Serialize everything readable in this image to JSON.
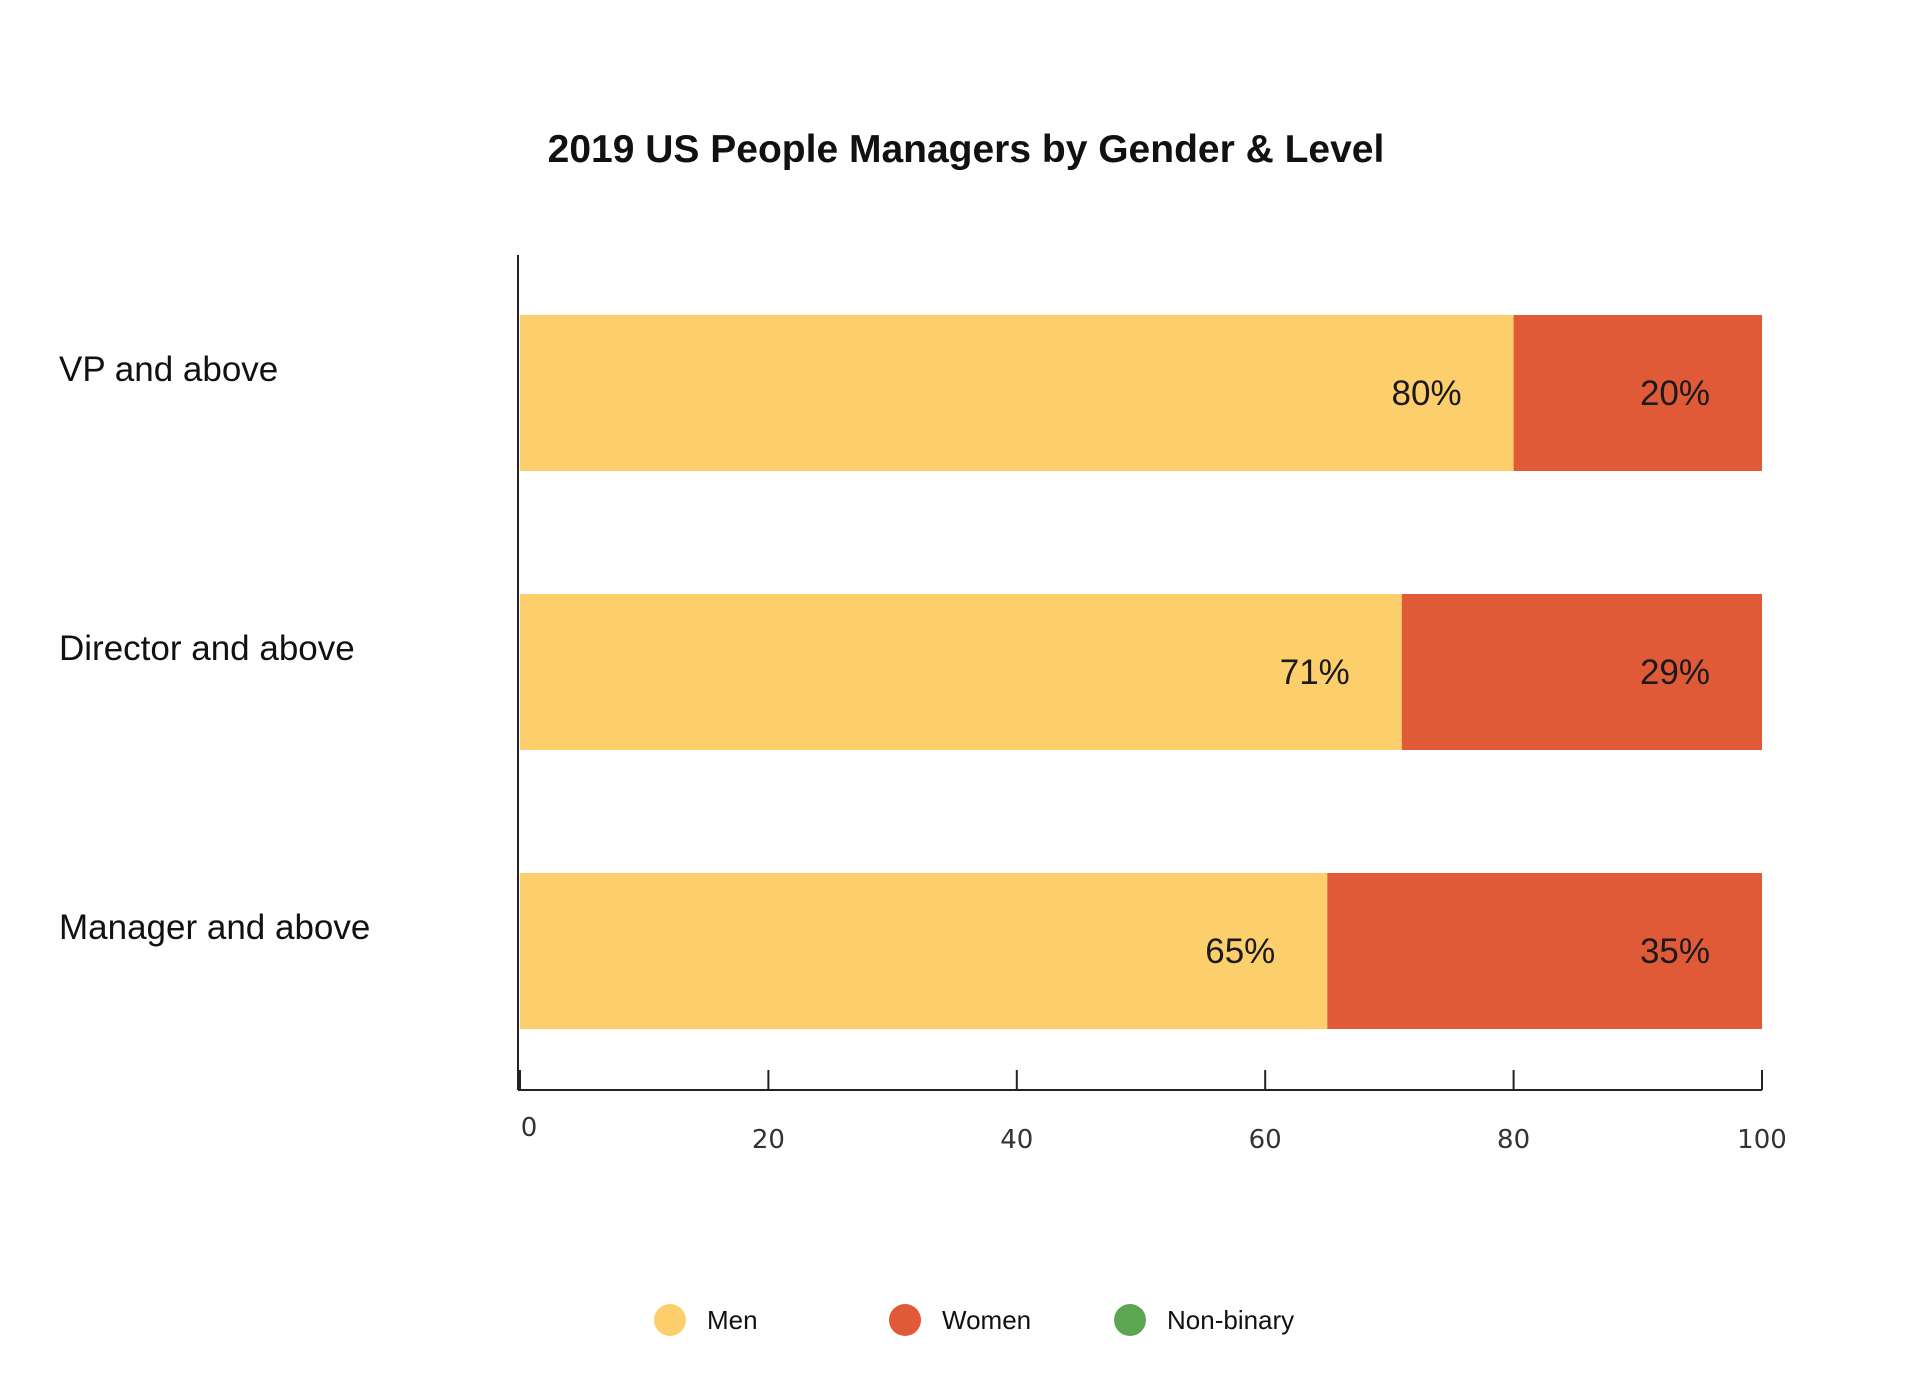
{
  "chart_data": {
    "type": "bar",
    "orientation": "horizontal",
    "stacked": true,
    "title": "2019 US People Managers by Gender & Level",
    "categories": [
      "VP and above",
      "Director and above",
      "Manager and above"
    ],
    "series": [
      {
        "name": "Men",
        "color": "#FDCE6C",
        "values": [
          80,
          71,
          65
        ],
        "labels": [
          "80%",
          "71%",
          "65%"
        ]
      },
      {
        "name": "Women",
        "color": "#E05A38",
        "values": [
          20,
          29,
          35
        ],
        "labels": [
          "20%",
          "29%",
          "35%"
        ]
      },
      {
        "name": "Non-binary",
        "color": "#5DA553",
        "values": [
          0,
          0,
          0
        ],
        "labels": [
          "",
          "",
          ""
        ]
      }
    ],
    "xlim": [
      0,
      100
    ],
    "xticks": [
      "0",
      "20",
      "40",
      "60",
      "80",
      "100"
    ],
    "grid": false,
    "legend_position": "bottom"
  }
}
